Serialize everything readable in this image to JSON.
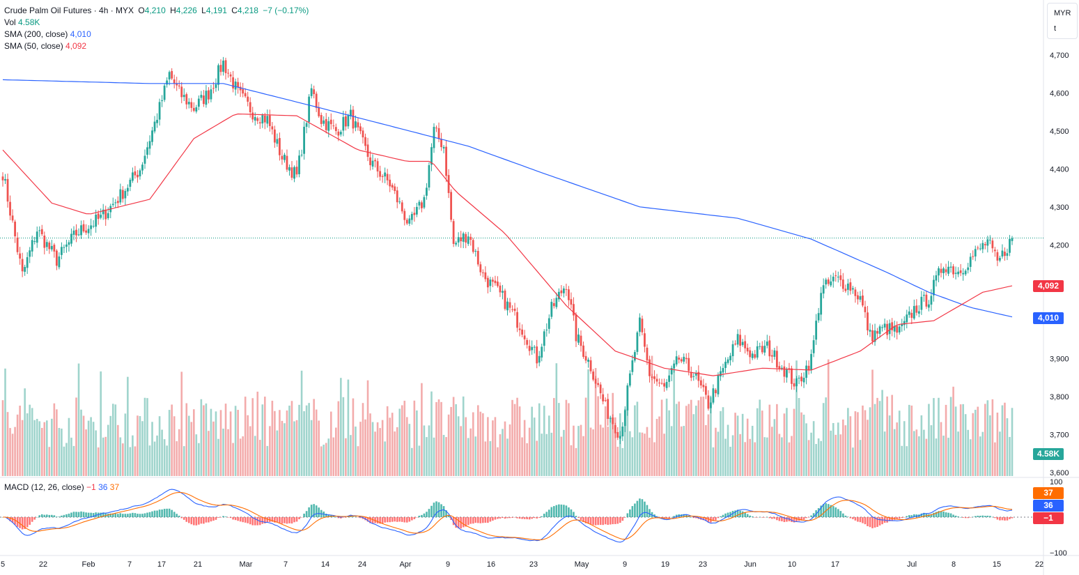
{
  "legend": {
    "symbol": "Crude Palm Oil Futures · 4h · MYX",
    "o_label": "O",
    "o_value": "4,210",
    "h_label": "H",
    "h_value": "4,226",
    "l_label": "L",
    "l_value": "4,191",
    "c_label": "C",
    "c_value": "4,218",
    "change": "−7 (−0.17%)",
    "vol_label": "Vol",
    "vol_value": "4.58K",
    "sma200_label": "SMA (200, close)",
    "sma200_value": "4,010",
    "sma50_label": "SMA (50, close)",
    "sma50_value": "4,092",
    "macd_label": "MACD (12, 26, close)",
    "macd_hist": "−1",
    "macd_line": "36",
    "macd_signal": "37"
  },
  "currency_box": {
    "line1": "MYR",
    "line2": "t"
  },
  "price_tags": {
    "sma50": "4,092",
    "sma200": "4,010",
    "volume": "4.58K",
    "macd_signal": "37",
    "macd_line": "36",
    "macd_hist": "−1"
  },
  "colors": {
    "up": "#26a69a",
    "down": "#ef5350",
    "sma200": "#2962ff",
    "sma50": "#f23645",
    "macd": "#2962ff",
    "signal": "#ff6d00"
  },
  "chart_data": {
    "type": "candlestick",
    "y_axis_price": {
      "ticks": [
        4700,
        4600,
        4500,
        4400,
        4300,
        4200,
        3900,
        3800,
        3700,
        3600
      ],
      "labels": [
        "4,700",
        "4,600",
        "4,500",
        "4,400",
        "4,300",
        "4,200",
        "3,900",
        "3,800",
        "3,700",
        "3,600"
      ],
      "range": [
        3600,
        4800
      ]
    },
    "y_axis_macd": {
      "ticks": [
        100,
        -100
      ],
      "labels": [
        "100",
        "−100"
      ],
      "range": [
        -100,
        100
      ]
    },
    "x_axis": {
      "labels": [
        "5",
        "22",
        "Feb",
        "7",
        "17",
        "21",
        "Mar",
        "7",
        "14",
        "24",
        "Apr",
        "9",
        "16",
        "23",
        "May",
        "9",
        "19",
        "23",
        "Jun",
        "10",
        "17",
        "Jul",
        "8",
        "15",
        "22"
      ]
    },
    "last_close": 4218,
    "anchors": [
      [
        0,
        4390
      ],
      [
        8,
        4120
      ],
      [
        14,
        4240
      ],
      [
        22,
        4160
      ],
      [
        30,
        4230
      ],
      [
        40,
        4270
      ],
      [
        48,
        4330
      ],
      [
        56,
        4400
      ],
      [
        64,
        4560
      ],
      [
        68,
        4650
      ],
      [
        72,
        4600
      ],
      [
        78,
        4560
      ],
      [
        84,
        4600
      ],
      [
        90,
        4680
      ],
      [
        96,
        4600
      ],
      [
        102,
        4550
      ],
      [
        108,
        4530
      ],
      [
        114,
        4430
      ],
      [
        120,
        4380
      ],
      [
        126,
        4610
      ],
      [
        130,
        4530
      ],
      [
        136,
        4500
      ],
      [
        142,
        4540
      ],
      [
        150,
        4420
      ],
      [
        158,
        4360
      ],
      [
        166,
        4250
      ],
      [
        172,
        4320
      ],
      [
        176,
        4500
      ],
      [
        180,
        4460
      ],
      [
        184,
        4200
      ],
      [
        190,
        4230
      ],
      [
        196,
        4120
      ],
      [
        204,
        4060
      ],
      [
        212,
        3980
      ],
      [
        218,
        3900
      ],
      [
        224,
        4030
      ],
      [
        230,
        4100
      ],
      [
        234,
        3960
      ],
      [
        240,
        3880
      ],
      [
        246,
        3770
      ],
      [
        252,
        3700
      ],
      [
        256,
        3850
      ],
      [
        260,
        3990
      ],
      [
        264,
        3860
      ],
      [
        270,
        3820
      ],
      [
        276,
        3900
      ],
      [
        282,
        3860
      ],
      [
        288,
        3780
      ],
      [
        294,
        3870
      ],
      [
        300,
        3950
      ],
      [
        306,
        3910
      ],
      [
        312,
        3930
      ],
      [
        318,
        3880
      ],
      [
        324,
        3830
      ],
      [
        330,
        3900
      ],
      [
        334,
        4080
      ],
      [
        340,
        4110
      ],
      [
        346,
        4090
      ],
      [
        350,
        4060
      ],
      [
        354,
        3960
      ],
      [
        360,
        3980
      ],
      [
        366,
        3970
      ],
      [
        372,
        4030
      ],
      [
        378,
        4060
      ],
      [
        384,
        4150
      ],
      [
        390,
        4130
      ],
      [
        396,
        4170
      ],
      [
        402,
        4210
      ],
      [
        406,
        4150
      ],
      [
        412,
        4218
      ]
    ],
    "sma200_points": [
      [
        0,
        4635
      ],
      [
        60,
        4625
      ],
      [
        90,
        4625
      ],
      [
        130,
        4560
      ],
      [
        160,
        4510
      ],
      [
        190,
        4460
      ],
      [
        220,
        4390
      ],
      [
        260,
        4300
      ],
      [
        300,
        4270
      ],
      [
        330,
        4215
      ],
      [
        360,
        4130
      ],
      [
        378,
        4075
      ],
      [
        395,
        4035
      ],
      [
        412,
        4010
      ]
    ],
    "sma50_points": [
      [
        0,
        4450
      ],
      [
        20,
        4310
      ],
      [
        35,
        4280
      ],
      [
        60,
        4320
      ],
      [
        78,
        4480
      ],
      [
        95,
        4545
      ],
      [
        120,
        4540
      ],
      [
        145,
        4450
      ],
      [
        165,
        4420
      ],
      [
        175,
        4420
      ],
      [
        185,
        4340
      ],
      [
        205,
        4230
      ],
      [
        230,
        4040
      ],
      [
        250,
        3920
      ],
      [
        270,
        3875
      ],
      [
        290,
        3855
      ],
      [
        310,
        3875
      ],
      [
        330,
        3870
      ],
      [
        350,
        3920
      ],
      [
        365,
        3990
      ],
      [
        380,
        4000
      ],
      [
        400,
        4075
      ],
      [
        412,
        4092
      ]
    ]
  }
}
